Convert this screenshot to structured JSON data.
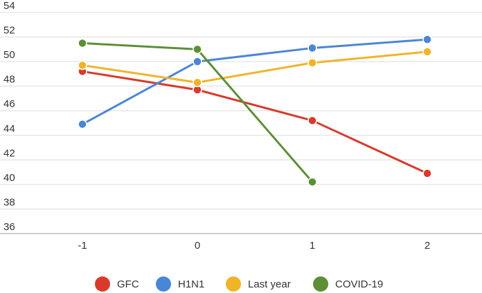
{
  "chart_data": {
    "type": "line",
    "title": "",
    "xlabel": "",
    "ylabel": "",
    "x": [
      -1,
      0,
      1,
      2
    ],
    "x_tick_labels": [
      "-1",
      "0",
      "1",
      "2"
    ],
    "ylim": [
      36,
      54
    ],
    "y_ticks": [
      36,
      38,
      40,
      42,
      44,
      46,
      48,
      50,
      52,
      54
    ],
    "y_tick_labels": [
      "36",
      "38",
      "40",
      "42",
      "44",
      "46",
      "48",
      "50",
      "52",
      "54"
    ],
    "grid": "horizontal",
    "legend_position": "bottom",
    "series": [
      {
        "name": "GFC",
        "color": "#d93a2b",
        "values": [
          49.2,
          47.7,
          45.2,
          40.9
        ]
      },
      {
        "name": "H1N1",
        "color": "#4a86d6",
        "values": [
          44.9,
          50.0,
          51.1,
          51.8
        ]
      },
      {
        "name": "Last year",
        "color": "#f0b429",
        "values": [
          49.7,
          48.3,
          49.9,
          50.8
        ]
      },
      {
        "name": "COVID-19",
        "color": "#5c8f36",
        "values": [
          51.5,
          51.0,
          40.2,
          null
        ]
      }
    ]
  }
}
